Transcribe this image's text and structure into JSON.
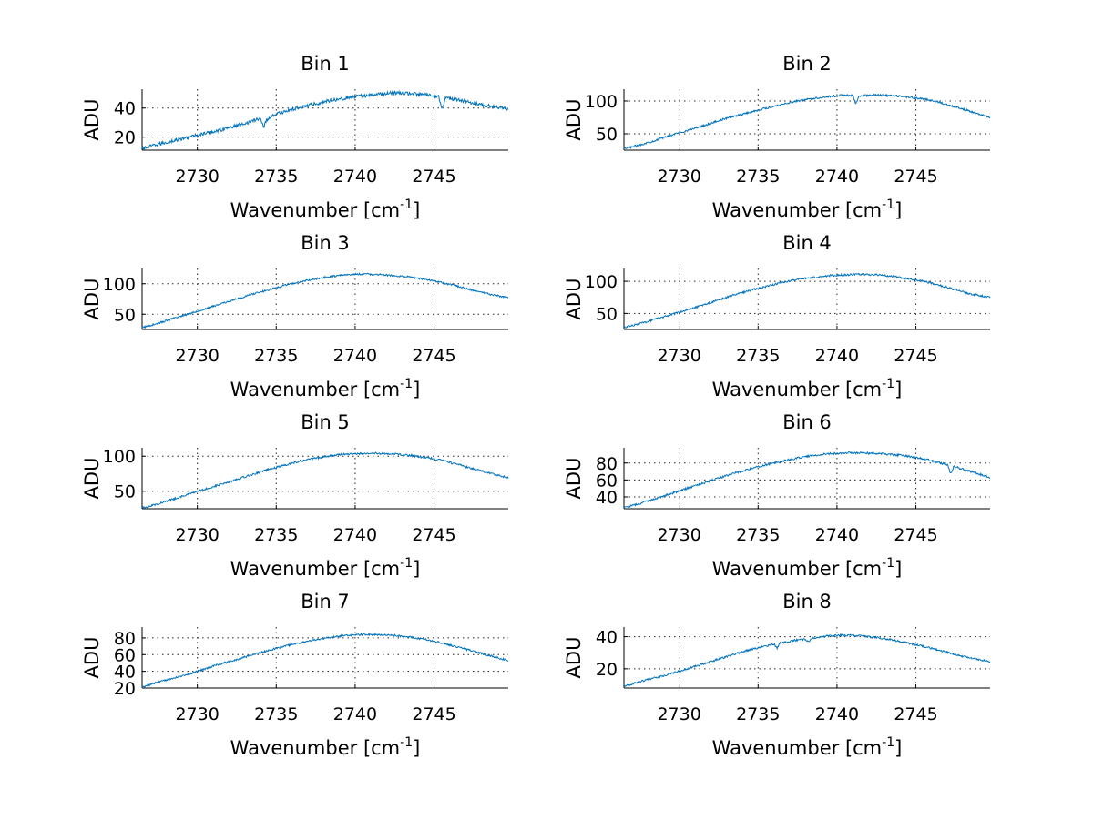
{
  "figure": {
    "background": "#ffffff",
    "line_color": "#0072bd"
  },
  "chart_data": [
    {
      "type": "line",
      "title": "Bin 1",
      "xlabel": "Wavenumber [cm",
      "xlabel_sup": "-1",
      "xlabel_suffix": "]",
      "ylabel": "ADU",
      "xlim": [
        2726.5,
        2749.7
      ],
      "ylim": [
        11,
        53
      ],
      "xticks": [
        2730,
        2735,
        2740,
        2745
      ],
      "yticks": [
        20,
        40
      ],
      "grid": true,
      "series": [
        {
          "name": "Bin 1",
          "x": [
            2726.5,
            2727.5,
            2728.5,
            2729.5,
            2730.5,
            2731.5,
            2732.5,
            2733.5,
            2734.0,
            2734.2,
            2734.4,
            2734.8,
            2735.5,
            2736.5,
            2737.5,
            2738.5,
            2739.5,
            2740.5,
            2741.5,
            2742.5,
            2743.5,
            2744.5,
            2745.3,
            2745.5,
            2745.7,
            2746.5,
            2747.5,
            2748.5,
            2749.7
          ],
          "y": [
            12,
            15,
            17.5,
            20,
            22.5,
            25,
            28,
            31,
            33,
            27,
            32,
            35,
            37.5,
            40.5,
            43,
            45.5,
            47,
            48.5,
            49.5,
            50.5,
            50,
            49,
            48,
            39,
            47,
            45.5,
            43.5,
            41.5,
            39.5
          ],
          "noise": 1.2
        }
      ]
    },
    {
      "type": "line",
      "title": "Bin 2",
      "xlabel": "Wavenumber [cm",
      "xlabel_sup": "-1",
      "xlabel_suffix": "]",
      "ylabel": "ADU",
      "xlim": [
        2726.5,
        2749.7
      ],
      "ylim": [
        25,
        118
      ],
      "xticks": [
        2730,
        2735,
        2740,
        2745
      ],
      "yticks": [
        50,
        100
      ],
      "grid": true,
      "series": [
        {
          "name": "Bin 2",
          "x": [
            2726.5,
            2727.5,
            2728.5,
            2729.5,
            2730.5,
            2731.5,
            2732.5,
            2733.5,
            2734.5,
            2735.5,
            2736.5,
            2737.5,
            2738.5,
            2739.5,
            2740.5,
            2741.0,
            2741.2,
            2741.4,
            2742.5,
            2743.5,
            2744.5,
            2745.5,
            2746.5,
            2747.5,
            2748.5,
            2749.7
          ],
          "y": [
            27,
            33,
            40,
            48,
            55,
            62,
            70,
            77,
            83,
            89,
            95,
            100,
            104,
            107,
            109,
            108,
            95,
            108,
            109,
            108,
            106,
            103,
            98,
            91,
            84,
            74
          ],
          "noise": 1.5
        }
      ]
    },
    {
      "type": "line",
      "title": "Bin 3",
      "xlabel": "Wavenumber [cm",
      "xlabel_sup": "-1",
      "xlabel_suffix": "]",
      "ylabel": "ADU",
      "xlim": [
        2726.5,
        2749.7
      ],
      "ylim": [
        25,
        125
      ],
      "xticks": [
        2730,
        2735,
        2740,
        2745
      ],
      "yticks": [
        50,
        100
      ],
      "grid": true,
      "series": [
        {
          "name": "Bin 3",
          "x": [
            2726.5,
            2727.5,
            2728.5,
            2729.5,
            2730.5,
            2731.5,
            2732.5,
            2733.5,
            2734.5,
            2735.5,
            2736.5,
            2737.5,
            2738.5,
            2739.5,
            2740.5,
            2741.5,
            2742.5,
            2743.5,
            2744.5,
            2745.5,
            2746.5,
            2747.5,
            2748.5,
            2749.7
          ],
          "y": [
            28,
            35,
            43,
            51,
            59,
            67,
            75,
            83,
            90,
            97,
            103,
            108,
            112,
            115,
            116,
            115,
            113,
            111,
            107,
            102,
            96,
            89,
            83,
            77
          ],
          "noise": 1.5
        }
      ]
    },
    {
      "type": "line",
      "title": "Bin 4",
      "xlabel": "Wavenumber [cm",
      "xlabel_sup": "-1",
      "xlabel_suffix": "]",
      "ylabel": "ADU",
      "xlim": [
        2726.5,
        2749.7
      ],
      "ylim": [
        25,
        120
      ],
      "xticks": [
        2730,
        2735,
        2740,
        2745
      ],
      "yticks": [
        50,
        100
      ],
      "grid": true,
      "series": [
        {
          "name": "Bin 4",
          "x": [
            2726.5,
            2727.5,
            2728.5,
            2729.5,
            2730.5,
            2731.5,
            2732.5,
            2733.5,
            2734.5,
            2735.5,
            2736.5,
            2737.5,
            2738.5,
            2739.5,
            2740.5,
            2741.5,
            2742.5,
            2743.5,
            2744.5,
            2745.5,
            2746.5,
            2747.5,
            2748.5,
            2749.7
          ],
          "y": [
            28,
            34,
            41,
            48,
            56,
            63,
            71,
            79,
            86,
            92,
            98,
            103,
            106,
            109,
            110,
            111,
            110,
            108,
            104,
            100,
            94,
            87,
            80,
            75
          ],
          "noise": 1.5
        }
      ]
    },
    {
      "type": "line",
      "title": "Bin 5",
      "xlabel": "Wavenumber [cm",
      "xlabel_sup": "-1",
      "xlabel_suffix": "]",
      "ylabel": "ADU",
      "xlim": [
        2726.5,
        2749.7
      ],
      "ylim": [
        25,
        112
      ],
      "xticks": [
        2730,
        2735,
        2740,
        2745
      ],
      "yticks": [
        50,
        100
      ],
      "grid": true,
      "series": [
        {
          "name": "Bin 5",
          "x": [
            2726.5,
            2727.5,
            2728.5,
            2729.5,
            2730.5,
            2731.5,
            2732.5,
            2733.5,
            2734.5,
            2735.5,
            2736.5,
            2737.5,
            2738.5,
            2739.5,
            2740.5,
            2741.5,
            2742.5,
            2743.5,
            2744.5,
            2745.5,
            2746.5,
            2747.5,
            2748.5,
            2749.7
          ],
          "y": [
            26,
            32,
            39,
            46,
            53,
            60,
            67,
            74,
            81,
            87,
            93,
            97,
            101,
            103,
            104,
            104,
            103,
            101,
            98,
            94,
            88,
            82,
            76,
            69
          ],
          "noise": 1.4
        }
      ]
    },
    {
      "type": "line",
      "title": "Bin 6",
      "xlabel": "Wavenumber [cm",
      "xlabel_sup": "-1",
      "xlabel_suffix": "]",
      "ylabel": "ADU",
      "xlim": [
        2726.5,
        2749.7
      ],
      "ylim": [
        26,
        98
      ],
      "xticks": [
        2730,
        2735,
        2740,
        2745
      ],
      "yticks": [
        40,
        60,
        80
      ],
      "grid": true,
      "series": [
        {
          "name": "Bin 6",
          "x": [
            2726.5,
            2727.5,
            2728.5,
            2729.5,
            2730.5,
            2731.5,
            2732.5,
            2733.5,
            2734.5,
            2735.5,
            2736.5,
            2737.5,
            2738.5,
            2739.5,
            2740.5,
            2741.5,
            2742.5,
            2743.5,
            2744.5,
            2745.5,
            2746.5,
            2747.0,
            2747.2,
            2747.4,
            2748.5,
            2749.7
          ],
          "y": [
            27,
            32,
            38,
            44,
            50,
            56,
            62,
            68,
            73,
            78,
            82,
            86,
            89,
            91,
            92,
            92,
            91,
            90,
            88,
            85,
            80,
            78,
            67,
            76,
            70,
            63
          ],
          "noise": 1.2
        }
      ]
    },
    {
      "type": "line",
      "title": "Bin 7",
      "xlabel": "Wavenumber [cm",
      "xlabel_sup": "-1",
      "xlabel_suffix": "]",
      "ylabel": "ADU",
      "xlim": [
        2726.5,
        2749.7
      ],
      "ylim": [
        20,
        93
      ],
      "xticks": [
        2730,
        2735,
        2740,
        2745
      ],
      "yticks": [
        20,
        40,
        60,
        80
      ],
      "grid": true,
      "series": [
        {
          "name": "Bin 7",
          "x": [
            2726.5,
            2727.5,
            2728.5,
            2729.5,
            2730.5,
            2731.5,
            2732.5,
            2733.5,
            2734.5,
            2735.5,
            2736.5,
            2737.5,
            2738.5,
            2739.5,
            2740.5,
            2741.5,
            2742.5,
            2743.5,
            2744.5,
            2745.5,
            2746.5,
            2747.5,
            2748.5,
            2749.7
          ],
          "y": [
            21,
            27,
            32,
            37,
            43,
            49,
            54,
            60,
            65,
            70,
            74,
            78,
            81,
            83,
            84,
            84,
            83,
            81,
            78,
            74,
            69,
            64,
            59,
            53
          ],
          "noise": 1.1
        }
      ]
    },
    {
      "type": "line",
      "title": "Bin 8",
      "xlabel": "Wavenumber [cm",
      "xlabel_sup": "-1",
      "xlabel_suffix": "]",
      "ylabel": "ADU",
      "xlim": [
        2726.5,
        2749.7
      ],
      "ylim": [
        8,
        46
      ],
      "xticks": [
        2730,
        2735,
        2740,
        2745
      ],
      "yticks": [
        20,
        40
      ],
      "grid": true,
      "series": [
        {
          "name": "Bin 8",
          "x": [
            2726.5,
            2727.5,
            2728.5,
            2729.5,
            2730.5,
            2731.5,
            2732.5,
            2733.5,
            2734.5,
            2735.5,
            2736.0,
            2736.2,
            2736.4,
            2737.5,
            2738.0,
            2738.2,
            2738.4,
            2739.5,
            2740.5,
            2741.5,
            2742.5,
            2743.5,
            2744.5,
            2745.5,
            2746.5,
            2747.5,
            2748.5,
            2749.7
          ],
          "y": [
            9,
            12,
            14.5,
            17,
            20,
            23,
            26,
            29,
            32,
            34,
            35.5,
            33,
            36,
            38,
            38.5,
            36.5,
            39,
            40.5,
            41,
            40.5,
            39.5,
            38,
            36,
            34,
            31.5,
            29,
            26.5,
            24.5
          ],
          "noise": 0.6
        }
      ]
    }
  ]
}
